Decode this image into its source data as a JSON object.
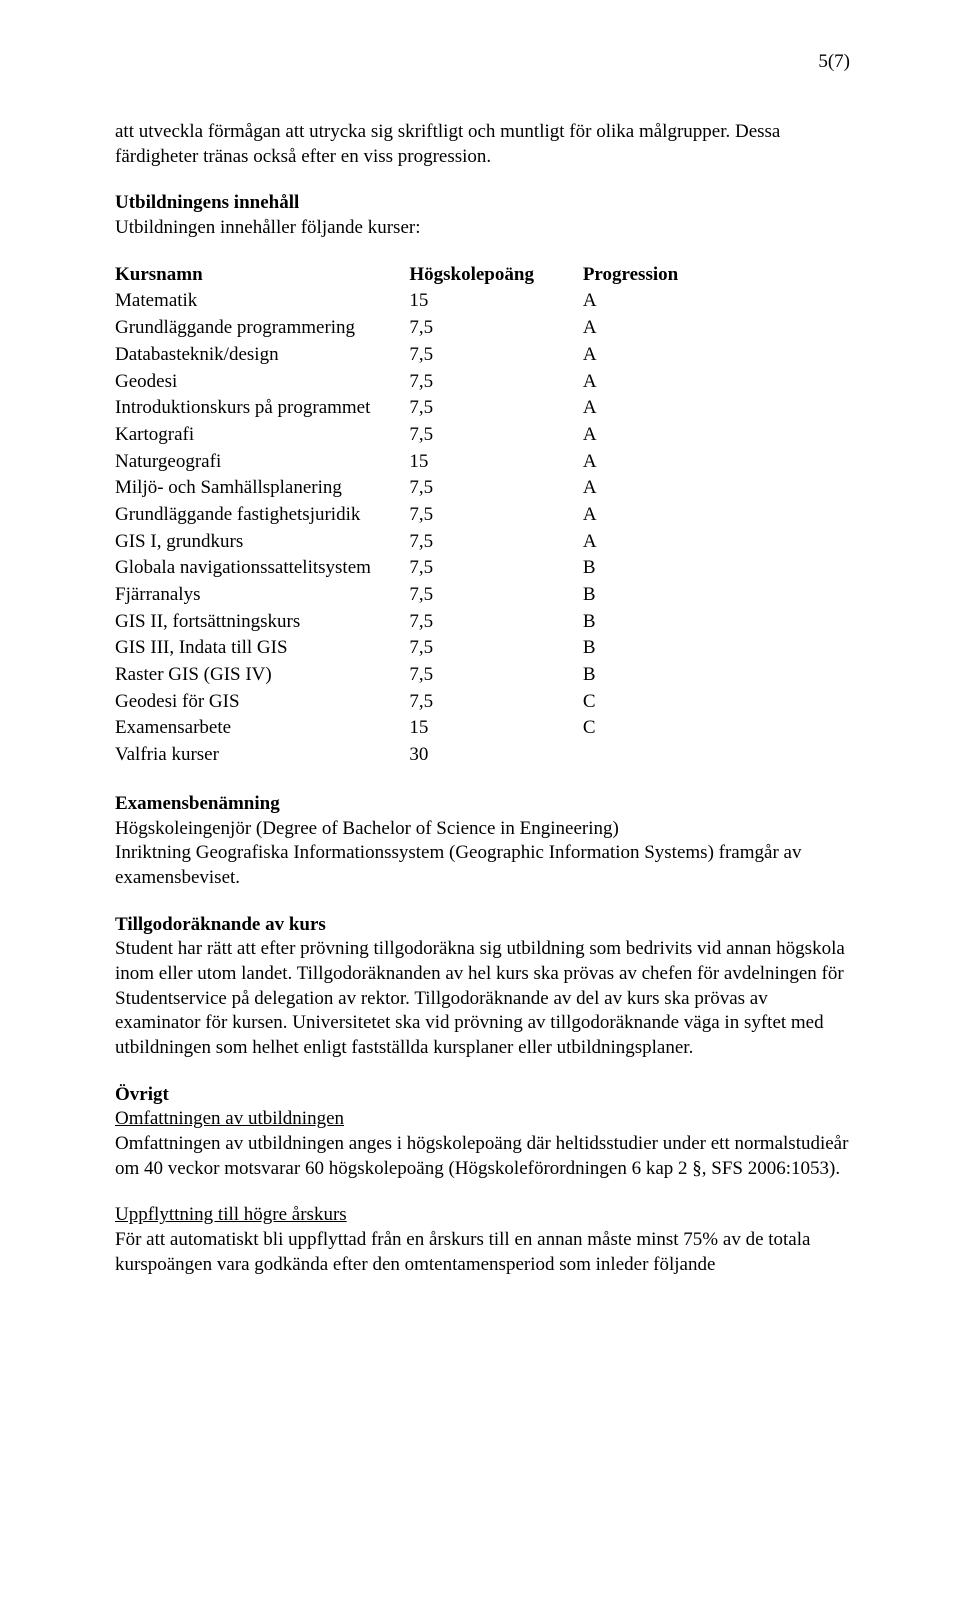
{
  "page_number": "5(7)",
  "intro_para": "att utveckla förmågan att utrycka sig skriftligt och muntligt för olika målgrupper. Dessa färdigheter tränas också efter en viss progression.",
  "section_innehall": {
    "heading": "Utbildningens innehåll",
    "text": "Utbildningen innehåller följande kurser:"
  },
  "table": {
    "headers": {
      "name": "Kursnamn",
      "points": "Högskolepoäng",
      "prog": "Progression"
    },
    "rows": [
      {
        "name": "Matematik",
        "points": "15",
        "prog": "A"
      },
      {
        "name": "Grundläggande programmering",
        "points": "7,5",
        "prog": "A"
      },
      {
        "name": "Databasteknik/design",
        "points": "7,5",
        "prog": "A"
      },
      {
        "name": "Geodesi",
        "points": "7,5",
        "prog": "A"
      },
      {
        "name": "Introduktionskurs på programmet",
        "points": "7,5",
        "prog": "A"
      },
      {
        "name": "Kartografi",
        "points": "7,5",
        "prog": "A"
      },
      {
        "name": "Naturgeografi",
        "points": "15",
        "prog": "A"
      },
      {
        "name": "Miljö- och Samhällsplanering",
        "points": "7,5",
        "prog": "A"
      },
      {
        "name": "Grundläggande fastighetsjuridik",
        "points": "7,5",
        "prog": "A"
      },
      {
        "name": "GIS I, grundkurs",
        "points": "7,5",
        "prog": "A"
      },
      {
        "name": "Globala navigationssattelitsystem",
        "points": "7,5",
        "prog": "B"
      },
      {
        "name": "Fjärranalys",
        "points": "7,5",
        "prog": "B"
      },
      {
        "name": "GIS II, fortsättningskurs",
        "points": "7,5",
        "prog": "B"
      },
      {
        "name": "GIS III, Indata till GIS",
        "points": "7,5",
        "prog": "B"
      },
      {
        "name": "Raster GIS (GIS IV)",
        "points": "7,5",
        "prog": "B"
      },
      {
        "name": "Geodesi för GIS",
        "points": "7,5",
        "prog": "C"
      },
      {
        "name": "Examensarbete",
        "points": "15",
        "prog": "C"
      },
      {
        "name": "Valfria kurser",
        "points": "30",
        "prog": ""
      }
    ]
  },
  "section_examen": {
    "heading": "Examensbenämning",
    "line1": "Högskoleingenjör (Degree of Bachelor of Science in Engineering)",
    "line2": "Inriktning Geografiska Informationssystem (Geographic Information Systems) framgår av examensbeviset."
  },
  "section_tillgodo": {
    "heading": "Tillgodoräknande av kurs",
    "text": "Student har rätt att efter prövning tillgodoräkna sig utbildning som bedrivits vid annan högskola inom eller utom landet. Tillgodoräknanden av hel kurs ska prövas av chefen för avdelningen för Studentservice på delegation av rektor. Tillgodoräknande av del av kurs ska prövas av examinator för kursen. Universitetet ska vid prövning av tillgodoräknande väga in syftet med utbildningen som helhet enligt fastställda kursplaner eller utbildningsplaner."
  },
  "section_ovrigt": {
    "heading": "Övrigt",
    "sub1_heading": "Omfattningen av utbildningen",
    "sub1_text": "Omfattningen av utbildningen anges i högskolepoäng där heltidsstudier under ett normalstudieår om 40 veckor motsvarar 60 högskolepoäng (Högskoleförordningen 6 kap 2 §, SFS 2006:1053).",
    "sub2_heading": "Uppflyttning till högre årskurs",
    "sub2_text": "För att automatiskt bli uppflyttad från en årskurs till en annan måste minst 75% av de totala kurspoängen vara godkända efter den omtentamensperiod som inleder följande"
  }
}
